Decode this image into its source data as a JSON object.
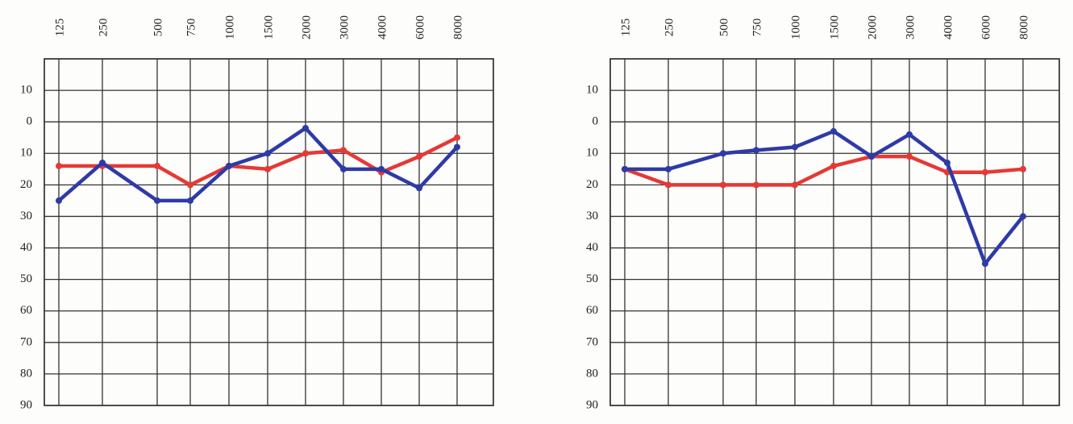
{
  "chart_data": [
    {
      "type": "line",
      "categories": [
        "125",
        "250",
        "500",
        "750",
        "1000",
        "1500",
        "2000",
        "3000",
        "4000",
        "6000",
        "8000"
      ],
      "series": [
        {
          "color": "#e53935",
          "values": [
            14,
            14,
            14,
            20,
            14,
            15,
            10,
            9,
            16,
            11,
            5
          ]
        },
        {
          "color": "#2e3aa6",
          "values": [
            25,
            13,
            25,
            25,
            14,
            10,
            2,
            15,
            15,
            21,
            8
          ]
        }
      ],
      "ylim": [
        -20,
        90
      ],
      "invert_y": true,
      "yticks": [
        {
          "value": -10,
          "label": "10"
        },
        0,
        10,
        20,
        30,
        40,
        50,
        60,
        70,
        80,
        90
      ],
      "grid": true
    },
    {
      "type": "line",
      "categories": [
        "125",
        "250",
        "500",
        "750",
        "1000",
        "1500",
        "2000",
        "3000",
        "4000",
        "6000",
        "8000"
      ],
      "series": [
        {
          "color": "#e53935",
          "values": [
            15,
            20,
            20,
            20,
            20,
            14,
            11,
            11,
            16,
            16,
            15
          ]
        },
        {
          "color": "#2e3aa6",
          "values": [
            15,
            15,
            10,
            9,
            8,
            3,
            11,
            4,
            13,
            45,
            30
          ]
        }
      ],
      "ylim": [
        -20,
        90
      ],
      "invert_y": true,
      "yticks": [
        {
          "value": -10,
          "label": "10"
        },
        0,
        10,
        20,
        30,
        40,
        50,
        60,
        70,
        80,
        90
      ],
      "grid": true
    }
  ]
}
